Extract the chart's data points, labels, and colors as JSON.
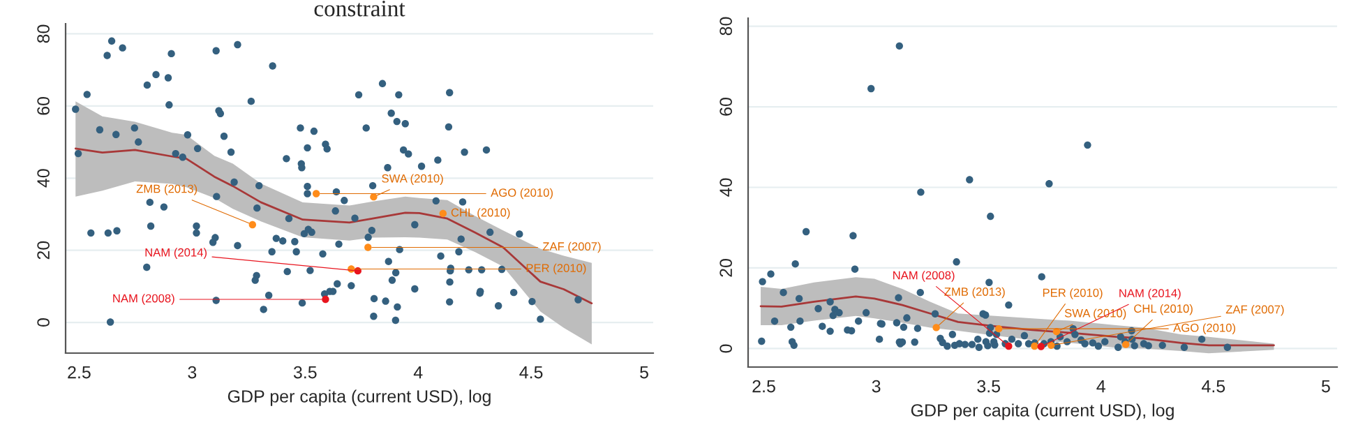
{
  "chart_data": [
    {
      "type": "scatter",
      "title": "constraint",
      "xlabel": "GDP per capita (current USD), log",
      "xlim": [
        2.44,
        5.04
      ],
      "ylim": [
        -8.5,
        82.8
      ],
      "xticks": [
        2.5,
        3,
        3.5,
        4,
        4.5,
        5
      ],
      "yticks": [
        0,
        20,
        40,
        60,
        80
      ],
      "grid": "y",
      "series": [
        {
          "type": "scatter",
          "marker": "circle",
          "color": "#34607f",
          "x": [
            2.484,
            2.496,
            2.535,
            2.591,
            2.624,
            2.644,
            2.663,
            2.692,
            2.745,
            2.762,
            2.801,
            2.84,
            2.894,
            2.898,
            2.908,
            2.927,
            2.958,
            2.98,
            3.024,
            3.106,
            3.118,
            3.125,
            3.141,
            3.172,
            3.201,
            3.261,
            3.356,
            3.417,
            3.479,
            3.483,
            3.485,
            3.51,
            3.539,
            3.59,
            3.597,
            3.737,
            3.77,
            3.842,
            3.865,
            3.881,
            3.906,
            3.914,
            3.935,
            3.943,
            3.957,
            4.015,
            4.087,
            4.135,
            4.139,
            4.205,
            4.302,
            2.813,
            2.875,
            3.108,
            3.186,
            3.296,
            3.287,
            3.51,
            3.51,
            3.638,
            3.673,
            3.634,
            3.72,
            3.799,
            3.795,
            4.079,
            4.197,
            4.318,
            4.448,
            2.552,
            2.628,
            2.667,
            2.817,
            3.019,
            3.019,
            3.102,
            3.092,
            3.201,
            3.353,
            3.372,
            3.401,
            3.428,
            3.454,
            3.461,
            3.496,
            3.529,
            3.514,
            3.649,
            3.779,
            3.985,
            3.918,
            4.1,
            4.18,
            4.19,
            2.799,
            3.578,
            3.869,
            3.522,
            3.421,
            3.285,
            3.279,
            3.642,
            3.704,
            3.609,
            3.586,
            3.623,
            3.885,
            3.901,
            4.144,
            4.142,
            4.14,
            4.224,
            4.281,
            4.37,
            3.985,
            4.273,
            4.275,
            4.423,
            4.504,
            3.106,
            3.339,
            3.316,
            3.487,
            3.856,
            3.803,
            3.9,
            3.908,
            4.139,
            4.355,
            4.541,
            4.708,
            2.638,
            3.805
          ],
          "values": [
            59.1,
            46.8,
            63.2,
            53.4,
            74.0,
            78.0,
            52.1,
            76.1,
            53.9,
            50.0,
            65.8,
            68.7,
            67.8,
            60.3,
            74.5,
            46.8,
            45.8,
            52.0,
            48.2,
            75.3,
            58.7,
            57.9,
            51.6,
            47.2,
            77.0,
            61.3,
            71.1,
            45.4,
            53.9,
            44.0,
            42.9,
            48.4,
            53.0,
            49.4,
            48.1,
            63.1,
            53.9,
            66.2,
            42.9,
            58.0,
            55.7,
            63.1,
            47.8,
            55.1,
            46.7,
            43.3,
            45.0,
            54.2,
            63.7,
            47.2,
            47.8,
            33.3,
            32.0,
            34.9,
            38.9,
            37.9,
            31.7,
            37.7,
            35.7,
            36.2,
            33.8,
            30.9,
            28.9,
            37.9,
            25.5,
            33.7,
            33.4,
            25.0,
            24.5,
            24.8,
            24.8,
            25.4,
            26.7,
            26.7,
            24.8,
            23.5,
            22.2,
            21.3,
            19.6,
            23.3,
            22.6,
            28.8,
            22.4,
            19.6,
            24.6,
            25.0,
            25.8,
            21.7,
            23.6,
            27.1,
            20.2,
            18.4,
            19.6,
            23.1,
            15.3,
            19.0,
            16.9,
            14.4,
            14.1,
            13.0,
            11.7,
            10.7,
            10.2,
            8.6,
            7.9,
            8.6,
            11.7,
            13.8,
            15.0,
            14.3,
            11.2,
            14.6,
            14.6,
            14.7,
            9.3,
            8.1,
            8.6,
            8.3,
            5.8,
            6.1,
            7.5,
            3.6,
            5.4,
            5.9,
            1.7,
            0.6,
            4.3,
            5.7,
            4.6,
            0.9,
            6.3,
            0.1,
            6.6
          ]
        },
        {
          "type": "line",
          "marker": "none",
          "color": "#a83838",
          "x": [
            2.484,
            2.603,
            2.747,
            2.912,
            2.974,
            3.098,
            3.18,
            3.304,
            3.489,
            3.696,
            3.799,
            3.943,
            4.005,
            4.129,
            4.252,
            4.376,
            4.541,
            4.644,
            4.768
          ],
          "values": [
            48.2,
            47.1,
            47.8,
            46.0,
            45.4,
            40.4,
            37.8,
            33.3,
            28.5,
            27.7,
            28.8,
            30.4,
            30.3,
            28.8,
            24.9,
            20.8,
            11.3,
            9.2,
            5.3
          ],
          "upper": [
            61.3,
            57.1,
            55.6,
            52.6,
            52.0,
            46.2,
            44.0,
            38.5,
            33.3,
            32.4,
            33.5,
            34.9,
            34.5,
            33.9,
            29.5,
            25.5,
            20.4,
            18.5,
            16.5
          ],
          "lower": [
            34.9,
            36.5,
            39.1,
            38.4,
            37.5,
            34.5,
            31.5,
            28.0,
            23.6,
            22.7,
            23.5,
            23.6,
            23.5,
            23.0,
            19.5,
            15.5,
            3.0,
            -1.5,
            -6.1
          ]
        },
        {
          "type": "scatter",
          "marker": "circle",
          "x": [
            3.549,
            3.803,
            4.11,
            3.267,
            3.778,
            3.704,
            3.733,
            3.59
          ],
          "values": [
            35.7,
            34.8,
            30.2,
            27.1,
            20.8,
            14.8,
            14.3,
            6.4
          ],
          "colors": [
            "#ff8c1a",
            "#ff8c1a",
            "#ff8c1a",
            "#ff8c1a",
            "#ff8c1a",
            "#ff8c1a",
            "#e8141e",
            "#e8141e"
          ]
        }
      ],
      "annotations": [
        {
          "text": "AGO (2010)",
          "x": 3.549,
          "y": 35.7
        },
        {
          "text": "SWA (2010)",
          "x": 3.803,
          "y": 34.8
        },
        {
          "text": "CHL (2010)",
          "x": 4.11,
          "y": 30.2
        },
        {
          "text": "ZMB (2013)",
          "x": 3.267,
          "y": 27.1
        },
        {
          "text": "ZAF (2007)",
          "x": 3.778,
          "y": 20.8
        },
        {
          "text": "PER (2010)",
          "x": 3.704,
          "y": 14.8
        },
        {
          "text": "NAM (2014)",
          "x": 3.733,
          "y": 14.3
        },
        {
          "text": "NAM (2008)",
          "x": 3.59,
          "y": 6.4
        }
      ]
    },
    {
      "type": "scatter",
      "xlabel": "GDP per capita (current USD), log",
      "xlim": [
        2.43,
        5.05
      ],
      "ylim": [
        -4.6,
        82
      ],
      "xticks": [
        2.5,
        3,
        3.5,
        4,
        4.5,
        5
      ],
      "yticks": [
        0,
        20,
        40,
        60,
        80
      ],
      "grid": "y",
      "series": [
        {
          "type": "scatter",
          "marker": "circle",
          "color": "#34607f",
          "x": [
            2.977,
            3.103,
            3.198,
            3.415,
            3.508,
            3.769,
            3.94,
            2.49,
            2.494,
            2.531,
            2.548,
            2.587,
            2.62,
            2.626,
            2.634,
            2.64,
            2.657,
            2.661,
            2.688,
            2.742,
            2.76,
            2.795,
            2.795,
            2.808,
            2.816,
            2.835,
            2.872,
            2.89,
            2.897,
            2.905,
            2.921,
            2.955,
            3.014,
            3.019,
            3.025,
            3.099,
            3.091,
            3.103,
            3.107,
            3.116,
            3.122,
            3.136,
            3.171,
            3.184,
            3.196,
            3.262,
            3.285,
            3.295,
            3.316,
            3.339,
            3.357,
            3.349,
            3.37,
            3.395,
            3.426,
            3.452,
            3.457,
            3.475,
            3.486,
            3.488,
            3.496,
            3.502,
            3.504,
            3.508,
            3.523,
            3.527,
            3.535,
            3.589,
            3.574,
            3.603,
            3.632,
            3.659,
            3.678,
            3.705,
            3.736,
            3.746,
            3.777,
            3.804,
            3.818,
            3.849,
            3.876,
            3.884,
            3.911,
            3.928,
            3.963,
            3.988,
            4.017,
            4.076,
            4.087,
            4.107,
            4.136,
            4.138,
            4.149,
            4.19,
            4.211,
            4.273,
            4.37,
            4.448,
            4.562
          ],
          "values": [
            64.5,
            75.1,
            38.8,
            41.9,
            32.8,
            40.9,
            50.5,
            1.8,
            16.6,
            18.5,
            6.8,
            13.9,
            5.3,
            1.7,
            0.8,
            21.0,
            12.4,
            6.8,
            29.0,
            9.9,
            5.5,
            11.6,
            4.3,
            8.2,
            9.7,
            8.9,
            4.6,
            4.4,
            28.0,
            19.7,
            6.8,
            8.9,
            2.3,
            6.2,
            6.1,
            12.6,
            6.4,
            1.6,
            1.2,
            1.6,
            5.3,
            7.6,
            1.6,
            5.0,
            13.9,
            8.6,
            2.5,
            1.5,
            0.6,
            3.5,
            21.5,
            0.8,
            1.2,
            1.0,
            1.0,
            2.3,
            0.3,
            8.6,
            8.3,
            1.7,
            0.7,
            16.4,
            3.8,
            5.2,
            1.7,
            0.9,
            3.5,
            10.8,
            1.2,
            2.3,
            1.2,
            3.2,
            1.2,
            1.4,
            17.8,
            1.2,
            1.7,
            0.6,
            2.9,
            1.7,
            4.9,
            3.5,
            2.1,
            1.2,
            1.4,
            0.6,
            1.7,
            0.3,
            2.9,
            1.7,
            4.4,
            2.3,
            0.7,
            1.2,
            0.7,
            0.8,
            0.3,
            2.3,
            0.3
          ]
        },
        {
          "type": "line",
          "marker": "none",
          "color": "#a83838",
          "x": [
            2.486,
            2.579,
            2.723,
            2.909,
            2.992,
            3.116,
            3.24,
            3.364,
            3.529,
            3.694,
            3.86,
            4.066,
            4.19,
            4.355,
            4.479,
            4.769
          ],
          "values": [
            10.5,
            10.4,
            11.6,
            12.9,
            12.4,
            10.8,
            8.7,
            6.6,
            5.5,
            4.6,
            3.9,
            2.9,
            2.5,
            1.4,
            0.8,
            0.8
          ],
          "upper": [
            15.3,
            14.8,
            16.4,
            17.7,
            17.3,
            14.8,
            11.6,
            8.7,
            8.1,
            7.5,
            6.9,
            5.8,
            5.2,
            3.5,
            2.9,
            1.2
          ],
          "lower": [
            5.8,
            5.8,
            6.9,
            8.1,
            7.5,
            6.4,
            5.2,
            4.4,
            3.2,
            2.1,
            1.4,
            0.2,
            0.0,
            -0.6,
            -1.2,
            -0.3
          ]
        },
        {
          "type": "scatter",
          "marker": "circle",
          "x": [
            3.545,
            3.802,
            4.11,
            3.267,
            3.778,
            3.704,
            3.733,
            3.589
          ],
          "values": [
            4.9,
            4.2,
            1.0,
            5.2,
            0.8,
            0.6,
            0.5,
            0.6
          ],
          "colors": [
            "#ff8c1a",
            "#ff8c1a",
            "#ff8c1a",
            "#ff8c1a",
            "#ff8c1a",
            "#ff8c1a",
            "#e8141e",
            "#e8141e"
          ]
        }
      ],
      "annotations": [
        {
          "text": "AGO (2010)",
          "x": 3.545,
          "y": 4.9
        },
        {
          "text": "SWA (2010)",
          "x": 3.802,
          "y": 4.2
        },
        {
          "text": "CHL (2010)",
          "x": 4.11,
          "y": 1.0
        },
        {
          "text": "ZMB (2013)",
          "x": 3.267,
          "y": 5.2
        },
        {
          "text": "ZAF (2007)",
          "x": 3.778,
          "y": 0.8
        },
        {
          "text": "PER (2010)",
          "x": 3.704,
          "y": 0.6
        },
        {
          "text": "NAM (2014)",
          "x": 3.733,
          "y": 0.5
        },
        {
          "text": "NAM (2008)",
          "x": 3.589,
          "y": 0.6
        }
      ]
    }
  ]
}
